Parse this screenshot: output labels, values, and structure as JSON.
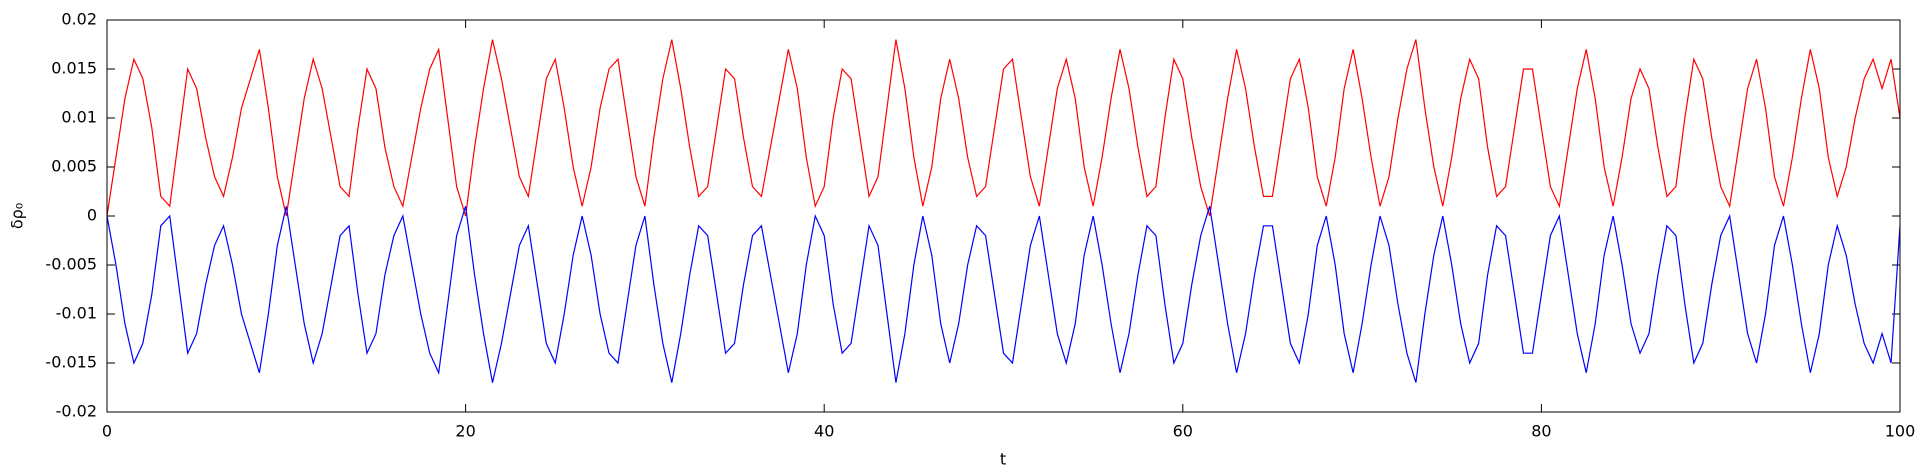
{
  "chart_data": {
    "type": "line",
    "xlabel": "t",
    "ylabel": "δρ₀",
    "xlim": [
      0,
      100
    ],
    "ylim": [
      -0.02,
      0.02
    ],
    "xticks": [
      0,
      20,
      40,
      60,
      80,
      100
    ],
    "yticks": [
      -0.02,
      -0.015,
      -0.01,
      -0.005,
      0,
      0.005,
      0.01,
      0.015,
      0.02
    ],
    "x": [
      0,
      0.5,
      1,
      1.5,
      2,
      2.5,
      3,
      3.5,
      4,
      4.5,
      5,
      5.5,
      6,
      6.5,
      7,
      7.5,
      8,
      8.5,
      9,
      9.5,
      10,
      10.5,
      11,
      11.5,
      12,
      12.5,
      13,
      13.5,
      14,
      14.5,
      15,
      15.5,
      16,
      16.5,
      17,
      17.5,
      18,
      18.5,
      19,
      19.5,
      20,
      20.5,
      21,
      21.5,
      22,
      22.5,
      23,
      23.5,
      24,
      24.5,
      25,
      25.5,
      26,
      26.5,
      27,
      27.5,
      28,
      28.5,
      29,
      29.5,
      30,
      30.5,
      31,
      31.5,
      32,
      32.5,
      33,
      33.5,
      34,
      34.5,
      35,
      35.5,
      36,
      36.5,
      37,
      37.5,
      38,
      38.5,
      39,
      39.5,
      40,
      40.5,
      41,
      41.5,
      42,
      42.5,
      43,
      43.5,
      44,
      44.5,
      45,
      45.5,
      46,
      46.5,
      47,
      47.5,
      48,
      48.5,
      49,
      49.5,
      50,
      50.5,
      51,
      51.5,
      52,
      52.5,
      53,
      53.5,
      54,
      54.5,
      55,
      55.5,
      56,
      56.5,
      57,
      57.5,
      58,
      58.5,
      59,
      59.5,
      60,
      60.5,
      61,
      61.5,
      62,
      62.5,
      63,
      63.5,
      64,
      64.5,
      65,
      65.5,
      66,
      66.5,
      67,
      67.5,
      68,
      68.5,
      69,
      69.5,
      70,
      70.5,
      71,
      71.5,
      72,
      72.5,
      73,
      73.5,
      74,
      74.5,
      75,
      75.5,
      76,
      76.5,
      77,
      77.5,
      78,
      78.5,
      79,
      79.5,
      80,
      80.5,
      81,
      81.5,
      82,
      82.5,
      83,
      83.5,
      84,
      84.5,
      85,
      85.5,
      86,
      86.5,
      87,
      87.5,
      88,
      88.5,
      89,
      89.5,
      90,
      90.5,
      91,
      91.5,
      92,
      92.5,
      93,
      93.5,
      94,
      94.5,
      95,
      95.5,
      96,
      96.5,
      97,
      97.5,
      98,
      98.5,
      99,
      99.5,
      100
    ],
    "series": [
      {
        "color": "#ff0000",
        "values": [
          0,
          0.006,
          0.012,
          0.016,
          0.014,
          0.009,
          0.002,
          0.001,
          0.008,
          0.015,
          0.013,
          0.008,
          0.004,
          0.002,
          0.006,
          0.011,
          0.014,
          0.017,
          0.011,
          0.004,
          0,
          0.006,
          0.012,
          0.016,
          0.013,
          0.008,
          0.003,
          0.002,
          0.009,
          0.015,
          0.013,
          0.007,
          0.003,
          0.001,
          0.006,
          0.011,
          0.015,
          0.017,
          0.01,
          0.003,
          0,
          0.007,
          0.013,
          0.018,
          0.014,
          0.009,
          0.004,
          0.002,
          0.008,
          0.014,
          0.016,
          0.011,
          0.005,
          0.001,
          0.005,
          0.011,
          0.015,
          0.016,
          0.01,
          0.004,
          0.001,
          0.008,
          0.014,
          0.018,
          0.013,
          0.007,
          0.002,
          0.003,
          0.009,
          0.015,
          0.014,
          0.008,
          0.003,
          0.002,
          0.007,
          0.012,
          0.017,
          0.013,
          0.006,
          0.001,
          0.003,
          0.01,
          0.015,
          0.014,
          0.008,
          0.002,
          0.004,
          0.011,
          0.018,
          0.013,
          0.006,
          0.001,
          0.005,
          0.012,
          0.016,
          0.012,
          0.006,
          0.002,
          0.003,
          0.009,
          0.015,
          0.016,
          0.01,
          0.004,
          0.001,
          0.007,
          0.013,
          0.016,
          0.012,
          0.005,
          0.001,
          0.006,
          0.012,
          0.017,
          0.013,
          0.007,
          0.002,
          0.003,
          0.01,
          0.016,
          0.014,
          0.008,
          0.003,
          0,
          0.006,
          0.012,
          0.017,
          0.013,
          0.007,
          0.002,
          0.002,
          0.008,
          0.014,
          0.016,
          0.011,
          0.004,
          0.001,
          0.006,
          0.013,
          0.017,
          0.012,
          0.006,
          0.001,
          0.004,
          0.01,
          0.015,
          0.018,
          0.011,
          0.005,
          0.001,
          0.006,
          0.012,
          0.016,
          0.014,
          0.007,
          0.002,
          0.003,
          0.009,
          0.015,
          0.015,
          0.009,
          0.003,
          0.001,
          0.007,
          0.013,
          0.017,
          0.012,
          0.005,
          0.001,
          0.006,
          0.012,
          0.015,
          0.013,
          0.007,
          0.002,
          0.003,
          0.01,
          0.016,
          0.014,
          0.008,
          0.003,
          0.001,
          0.007,
          0.013,
          0.016,
          0.011,
          0.004,
          0.001,
          0.006,
          0.012,
          0.017,
          0.013,
          0.006,
          0.002,
          0.005,
          0.01,
          0.014,
          0.016,
          0.013,
          0.016,
          0.01
        ]
      },
      {
        "color": "#0000ff",
        "values": [
          0,
          -0.005,
          -0.011,
          -0.015,
          -0.013,
          -0.008,
          -0.001,
          0,
          -0.007,
          -0.014,
          -0.012,
          -0.007,
          -0.003,
          -0.001,
          -0.005,
          -0.01,
          -0.013,
          -0.016,
          -0.01,
          -0.003,
          0.001,
          -0.005,
          -0.011,
          -0.015,
          -0.012,
          -0.007,
          -0.002,
          -0.001,
          -0.008,
          -0.014,
          -0.012,
          -0.006,
          -0.002,
          0,
          -0.005,
          -0.01,
          -0.014,
          -0.016,
          -0.009,
          -0.002,
          0.001,
          -0.006,
          -0.012,
          -0.017,
          -0.013,
          -0.008,
          -0.003,
          -0.001,
          -0.007,
          -0.013,
          -0.015,
          -0.01,
          -0.004,
          0,
          -0.004,
          -0.01,
          -0.014,
          -0.015,
          -0.009,
          -0.003,
          0,
          -0.007,
          -0.013,
          -0.017,
          -0.012,
          -0.006,
          -0.001,
          -0.002,
          -0.008,
          -0.014,
          -0.013,
          -0.007,
          -0.002,
          -0.001,
          -0.006,
          -0.011,
          -0.016,
          -0.012,
          -0.005,
          0,
          -0.002,
          -0.009,
          -0.014,
          -0.013,
          -0.007,
          -0.001,
          -0.003,
          -0.01,
          -0.017,
          -0.012,
          -0.005,
          0,
          -0.004,
          -0.011,
          -0.015,
          -0.011,
          -0.005,
          -0.001,
          -0.002,
          -0.008,
          -0.014,
          -0.015,
          -0.009,
          -0.003,
          0,
          -0.006,
          -0.012,
          -0.015,
          -0.011,
          -0.004,
          0,
          -0.005,
          -0.011,
          -0.016,
          -0.012,
          -0.006,
          -0.001,
          -0.002,
          -0.009,
          -0.015,
          -0.013,
          -0.007,
          -0.002,
          0.001,
          -0.005,
          -0.011,
          -0.016,
          -0.012,
          -0.006,
          -0.001,
          -0.001,
          -0.007,
          -0.013,
          -0.015,
          -0.01,
          -0.003,
          0,
          -0.005,
          -0.012,
          -0.016,
          -0.011,
          -0.005,
          0,
          -0.003,
          -0.009,
          -0.014,
          -0.017,
          -0.01,
          -0.004,
          0,
          -0.005,
          -0.011,
          -0.015,
          -0.013,
          -0.006,
          -0.001,
          -0.002,
          -0.008,
          -0.014,
          -0.014,
          -0.008,
          -0.002,
          0,
          -0.006,
          -0.012,
          -0.016,
          -0.011,
          -0.004,
          0,
          -0.005,
          -0.011,
          -0.014,
          -0.012,
          -0.006,
          -0.001,
          -0.002,
          -0.009,
          -0.015,
          -0.013,
          -0.007,
          -0.002,
          0,
          -0.006,
          -0.012,
          -0.015,
          -0.01,
          -0.003,
          0,
          -0.005,
          -0.011,
          -0.016,
          -0.012,
          -0.005,
          -0.001,
          -0.004,
          -0.009,
          -0.013,
          -0.015,
          -0.012,
          -0.015,
          -0.001
        ]
      }
    ]
  }
}
